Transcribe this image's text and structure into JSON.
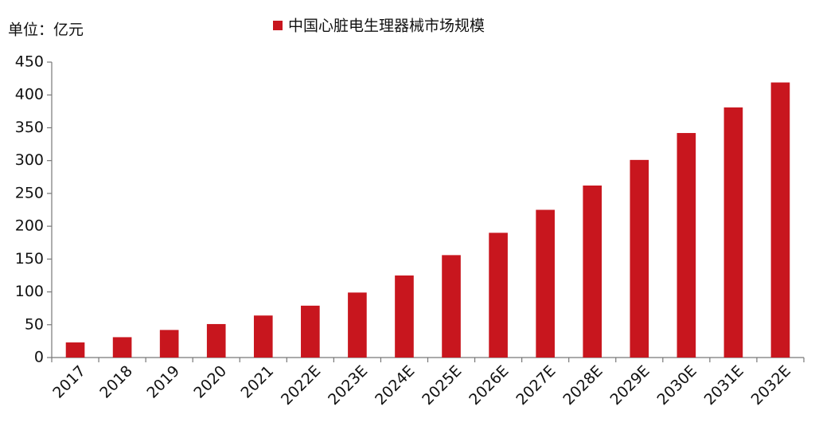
{
  "chart_data": {
    "type": "bar",
    "unit_label": "单位：亿元",
    "categories": [
      "2017",
      "2018",
      "2019",
      "2020",
      "2021",
      "2022E",
      "2023E",
      "2024E",
      "2025E",
      "2026E",
      "2027E",
      "2028E",
      "2029E",
      "2030E",
      "2031E",
      "2032E"
    ],
    "series": [
      {
        "name": "中国心脏电生理器械市场规模",
        "color": "#c8161e",
        "values": [
          23,
          31,
          42,
          51,
          64,
          79,
          99,
          125,
          156,
          190,
          225,
          262,
          301,
          342,
          381,
          419
        ]
      }
    ],
    "ylim": [
      0,
      450
    ],
    "yticks": [
      0,
      50,
      100,
      150,
      200,
      250,
      300,
      350,
      400,
      450
    ],
    "legend": "top"
  }
}
